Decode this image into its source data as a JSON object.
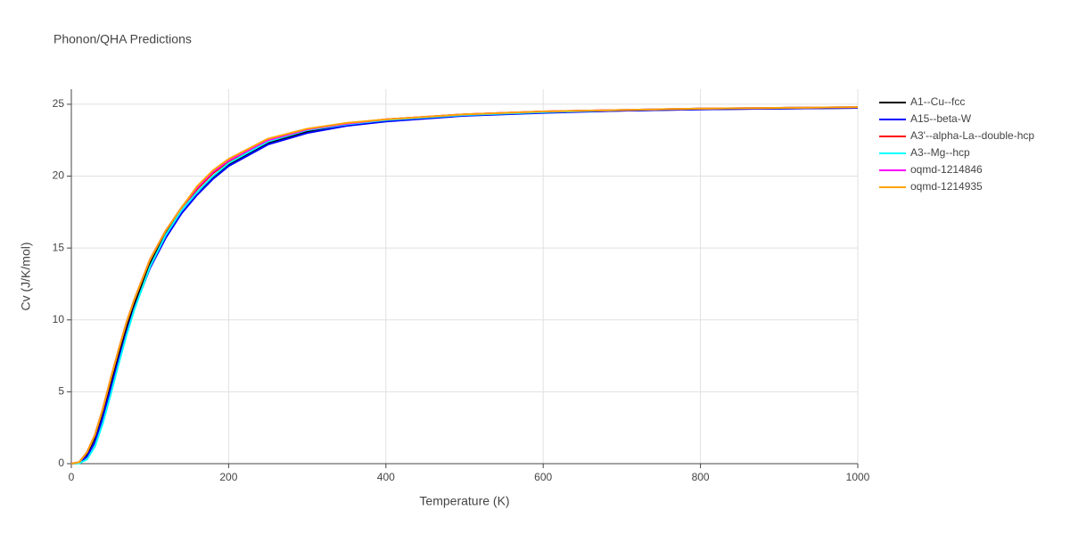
{
  "chart_data": {
    "type": "line",
    "title": "Phonon/QHA Predictions",
    "x_label": "Temperature (K)",
    "y_label": "Cv (J/K/mol)",
    "x": [
      0,
      10,
      20,
      30,
      40,
      50,
      60,
      70,
      80,
      100,
      120,
      140,
      160,
      180,
      200,
      250,
      300,
      350,
      400,
      500,
      600,
      700,
      800,
      900,
      1000
    ],
    "series": [
      {
        "name": "A1--Cu--fcc",
        "color": "#000000",
        "values": [
          0,
          0.08,
          0.7,
          1.8,
          3.6,
          5.6,
          7.6,
          9.5,
          11.1,
          13.9,
          16.0,
          17.6,
          18.9,
          19.9,
          20.8,
          22.3,
          23.1,
          23.6,
          23.9,
          24.25,
          24.45,
          24.55,
          24.65,
          24.7,
          24.75
        ]
      },
      {
        "name": "A15--beta-W",
        "color": "#0000ff",
        "values": [
          0,
          0.05,
          0.5,
          1.5,
          3.2,
          5.2,
          7.2,
          9.1,
          10.8,
          13.6,
          15.7,
          17.4,
          18.7,
          19.8,
          20.7,
          22.2,
          23.0,
          23.5,
          23.8,
          24.2,
          24.4,
          24.55,
          24.65,
          24.7,
          24.75
        ]
      },
      {
        "name": "A3'--alpha-La--double-hcp",
        "color": "#ff0000",
        "values": [
          0,
          0.1,
          0.8,
          2.0,
          3.8,
          5.9,
          7.9,
          9.8,
          11.4,
          14.2,
          16.2,
          17.8,
          19.1,
          20.2,
          21.0,
          22.5,
          23.25,
          23.65,
          23.95,
          24.3,
          24.5,
          24.6,
          24.7,
          24.75,
          24.8
        ]
      },
      {
        "name": "A3--Mg--hcp",
        "color": "#00ffff",
        "values": [
          0,
          0.02,
          0.3,
          1.2,
          2.8,
          4.8,
          6.9,
          8.9,
          10.7,
          13.7,
          15.9,
          17.6,
          18.9,
          20.0,
          20.9,
          22.4,
          23.2,
          23.6,
          23.9,
          24.25,
          24.45,
          24.6,
          24.7,
          24.75,
          24.8
        ]
      },
      {
        "name": "oqmd-1214846",
        "color": "#ff00ff",
        "values": [
          0,
          0.1,
          0.8,
          2.0,
          3.8,
          5.9,
          7.9,
          9.8,
          11.4,
          14.2,
          16.2,
          17.8,
          19.2,
          20.3,
          21.1,
          22.5,
          23.25,
          23.65,
          23.95,
          24.3,
          24.5,
          24.6,
          24.7,
          24.75,
          24.8
        ]
      },
      {
        "name": "oqmd-1214935",
        "color": "#ffa500",
        "values": [
          0,
          0.1,
          0.8,
          2.0,
          3.8,
          5.9,
          7.9,
          9.8,
          11.4,
          14.2,
          16.2,
          17.8,
          19.3,
          20.4,
          21.2,
          22.6,
          23.3,
          23.7,
          23.95,
          24.3,
          24.5,
          24.6,
          24.7,
          24.75,
          24.8
        ]
      }
    ],
    "xlim": [
      0,
      1000
    ],
    "ylim": [
      0,
      26.05
    ],
    "xticks": [
      0,
      200,
      400,
      600,
      800,
      1000
    ],
    "yticks": [
      0,
      5,
      10,
      15,
      20,
      25
    ],
    "grid": true
  }
}
